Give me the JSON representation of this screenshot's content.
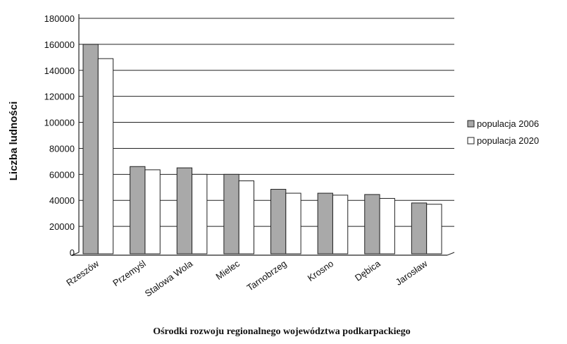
{
  "chart_data": {
    "type": "bar",
    "title": "",
    "xlabel": "Ośrodki rozwoju regionalnego województwa podkarpackiego",
    "ylabel": "Liczba ludności",
    "ylim": [
      0,
      180000
    ],
    "y_ticks": [
      0,
      20000,
      40000,
      60000,
      80000,
      100000,
      120000,
      140000,
      160000,
      180000
    ],
    "grid": true,
    "legend_position": "right",
    "categories": [
      "Rzeszów",
      "Przemyśl",
      "Stalowa Wola",
      "Mielec",
      "Tarnobrzeg",
      "Krosno",
      "Dębica",
      "Jarosław"
    ],
    "series": [
      {
        "name": "populacja 2006",
        "color": "#a9a9a9",
        "values": [
          160000,
          66000,
          65000,
          60000,
          48500,
          45500,
          44500,
          38000
        ]
      },
      {
        "name": "populacja 2020",
        "color": "#ffffff",
        "values": [
          149000,
          63500,
          60000,
          55000,
          45500,
          44000,
          41500,
          37000
        ]
      }
    ]
  }
}
